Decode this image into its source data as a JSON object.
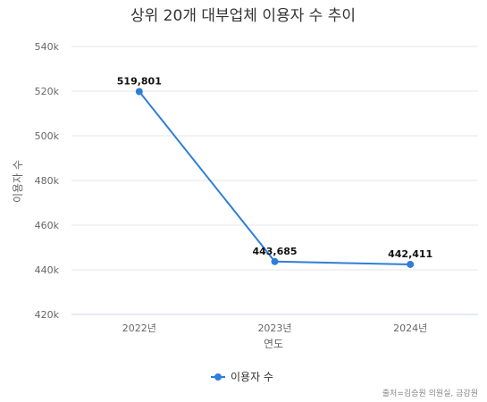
{
  "chart_data": {
    "type": "line",
    "title": "상위 20개 대부업체 이용자 수 추이",
    "xlabel": "연도",
    "ylabel": "이용자 수",
    "categories": [
      "2022년",
      "2023년",
      "2024년"
    ],
    "series": [
      {
        "name": "이용자 수",
        "values": [
          519801,
          443685,
          442411
        ],
        "labels": [
          "519,801",
          "443,685",
          "442,411"
        ],
        "color": "#2f7ed8"
      }
    ],
    "ylim": [
      420000,
      540000
    ],
    "yticks": [
      420000,
      440000,
      460000,
      480000,
      500000,
      520000,
      540000
    ],
    "ytick_labels": [
      "420k",
      "440k",
      "460k",
      "480k",
      "500k",
      "520k",
      "540k"
    ],
    "grid": true,
    "legend": "bottom-center",
    "source": "출처=김승원 의원실, 금감원"
  }
}
